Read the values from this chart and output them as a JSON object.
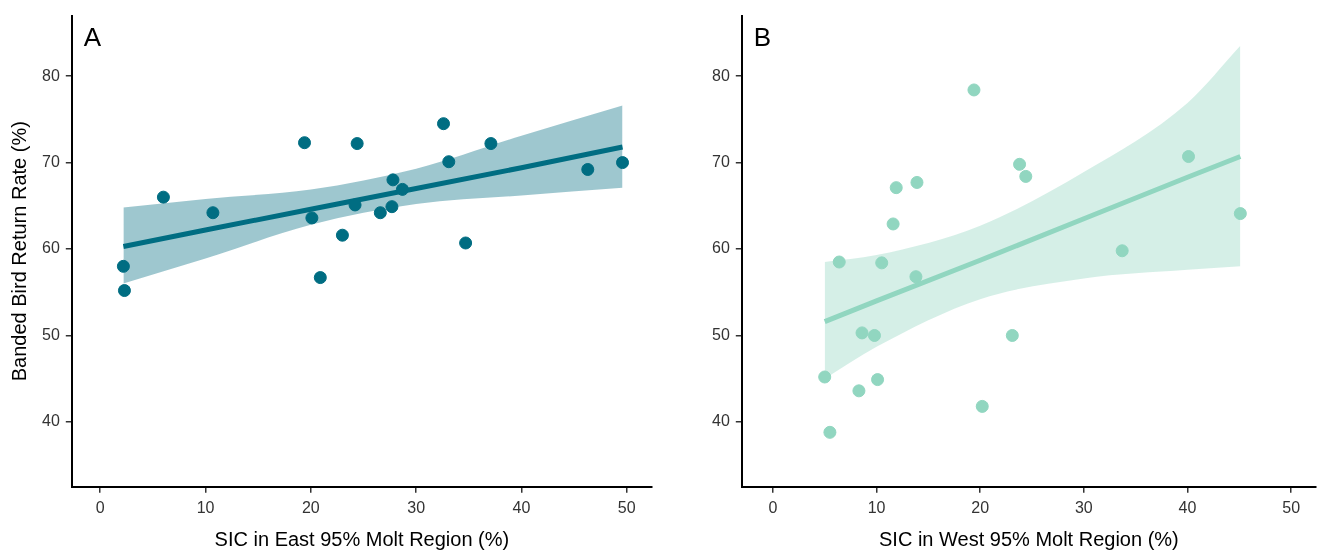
{
  "chart_data": [
    {
      "type": "scatter",
      "title": "A",
      "xlabel": "SIC in East 95% Molt Region (%)",
      "ylabel": "Banded Bird Return Rate (%)",
      "xlim": [
        -2.7,
        52.4
      ],
      "ylim": [
        32.5,
        87
      ],
      "xticks": [
        0,
        10,
        20,
        30,
        40,
        50
      ],
      "yticks": [
        40,
        50,
        60,
        70,
        80
      ],
      "grid": false,
      "legend": false,
      "series": [
        {
          "marker": "circle",
          "color": "#006d82",
          "x": [
            2.2,
            2.3,
            6.0,
            10.7,
            19.4,
            20.1,
            20.9,
            23.0,
            24.2,
            24.4,
            26.6,
            27.7,
            27.8,
            28.7,
            32.6,
            33.1,
            34.7,
            37.1,
            46.3,
            49.6
          ],
          "values": [
            58.0,
            55.2,
            66.0,
            64.2,
            72.3,
            63.6,
            56.7,
            61.6,
            65.1,
            72.2,
            64.2,
            64.9,
            68.0,
            66.9,
            74.5,
            70.1,
            60.7,
            72.2,
            69.2,
            70.0
          ]
        },
        {
          "type": "line",
          "marker": "none",
          "color": "#006d82",
          "x": [
            2.2,
            10,
            20,
            30,
            40,
            49.6
          ],
          "values": [
            60.3,
            62.2,
            64.6,
            67.0,
            69.4,
            71.8
          ],
          "lower": [
            56.0,
            58.9,
            62.8,
            65.2,
            66.2,
            67.1
          ],
          "upper": [
            64.8,
            65.8,
            66.9,
            69.3,
            73.1,
            76.6
          ]
        }
      ]
    },
    {
      "type": "scatter",
      "title": "B",
      "xlabel": "SIC in West 95% Molt Region (%)",
      "xlim": [
        -3.0,
        52.4
      ],
      "ylim": [
        32.5,
        87
      ],
      "xticks": [
        0,
        10,
        20,
        30,
        40,
        50
      ],
      "yticks": [
        40,
        50,
        60,
        70,
        80
      ],
      "grid": false,
      "legend": false,
      "series": [
        {
          "marker": "circle",
          "color": "#91d6c0",
          "x": [
            19.4,
            23.8,
            24.4,
            40.1,
            11.9,
            13.9,
            11.6,
            45.1,
            6.4,
            10.5,
            13.8,
            33.7,
            8.6,
            9.8,
            23.1,
            5.0,
            10.1,
            8.3,
            20.2,
            5.5
          ],
          "values": [
            78.4,
            69.8,
            68.4,
            70.7,
            67.1,
            67.7,
            62.9,
            64.1,
            58.5,
            58.4,
            56.8,
            59.8,
            50.3,
            50.0,
            50.0,
            45.2,
            44.9,
            43.6,
            41.8,
            38.8
          ]
        },
        {
          "type": "line",
          "marker": "none",
          "color": "#91d6c0",
          "x": [
            5.0,
            10,
            20,
            30,
            40,
            45.1
          ],
          "values": [
            51.6,
            54.0,
            58.7,
            63.5,
            68.3,
            70.7
          ],
          "lower": [
            45.0,
            48.7,
            54.2,
            56.6,
            57.6,
            58.0
          ],
          "upper": [
            58.5,
            59.3,
            62.7,
            68.9,
            76.9,
            83.5
          ]
        }
      ]
    }
  ]
}
